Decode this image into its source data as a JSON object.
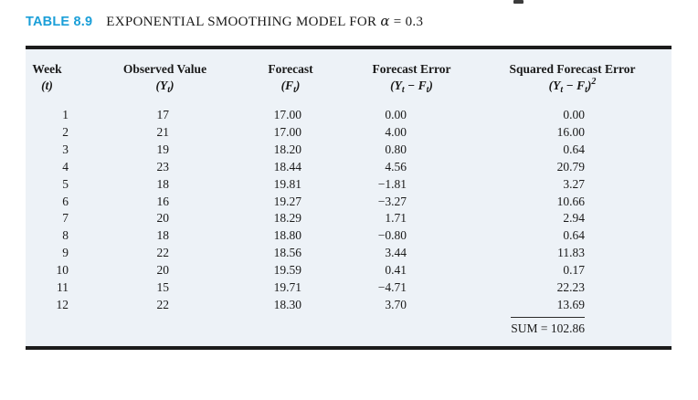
{
  "title": {
    "table_label": "TABLE 8.9",
    "table_title": "EXPONENTIAL SMOOTHING MODEL FOR",
    "alpha_symbol": "α",
    "alpha_value": "= 0.3"
  },
  "table": {
    "columns": [
      {
        "header": "Week",
        "sub": [
          "(t)"
        ]
      },
      {
        "header": "Observed Value",
        "sub": [
          "(Y",
          "t",
          ")"
        ]
      },
      {
        "header": "Forecast",
        "sub": [
          "(F",
          "t",
          ")"
        ]
      },
      {
        "header": "Forecast Error",
        "sub": [
          "(Y",
          "t",
          " − F",
          "t",
          ")"
        ]
      },
      {
        "header": "Squared Forecast Error",
        "sub": [
          "(Y",
          "t",
          " − F",
          "t",
          ")",
          "2"
        ]
      }
    ],
    "rows": [
      [
        "1",
        "17",
        "17.00",
        "0.00",
        "0.00"
      ],
      [
        "2",
        "21",
        "17.00",
        "4.00",
        "16.00"
      ],
      [
        "3",
        "19",
        "18.20",
        "0.80",
        "0.64"
      ],
      [
        "4",
        "23",
        "18.44",
        "4.56",
        "20.79"
      ],
      [
        "5",
        "18",
        "19.81",
        "−1.81",
        "3.27"
      ],
      [
        "6",
        "16",
        "19.27",
        "−3.27",
        "10.66"
      ],
      [
        "7",
        "20",
        "18.29",
        "1.71",
        "2.94"
      ],
      [
        "8",
        "18",
        "18.80",
        "−0.80",
        "0.64"
      ],
      [
        "9",
        "22",
        "18.56",
        "3.44",
        "11.83"
      ],
      [
        "10",
        "20",
        "19.59",
        "0.41",
        "0.17"
      ],
      [
        "11",
        "15",
        "19.71",
        "−4.71",
        "22.23"
      ],
      [
        "12",
        "22",
        "18.30",
        "3.70",
        "13.69"
      ]
    ],
    "sum_label": "SUM = 102.86"
  },
  "colors": {
    "accent_blue": "#1b9fd8",
    "table_background": "#edf2f7",
    "rule_black": "#1c1c1c"
  }
}
